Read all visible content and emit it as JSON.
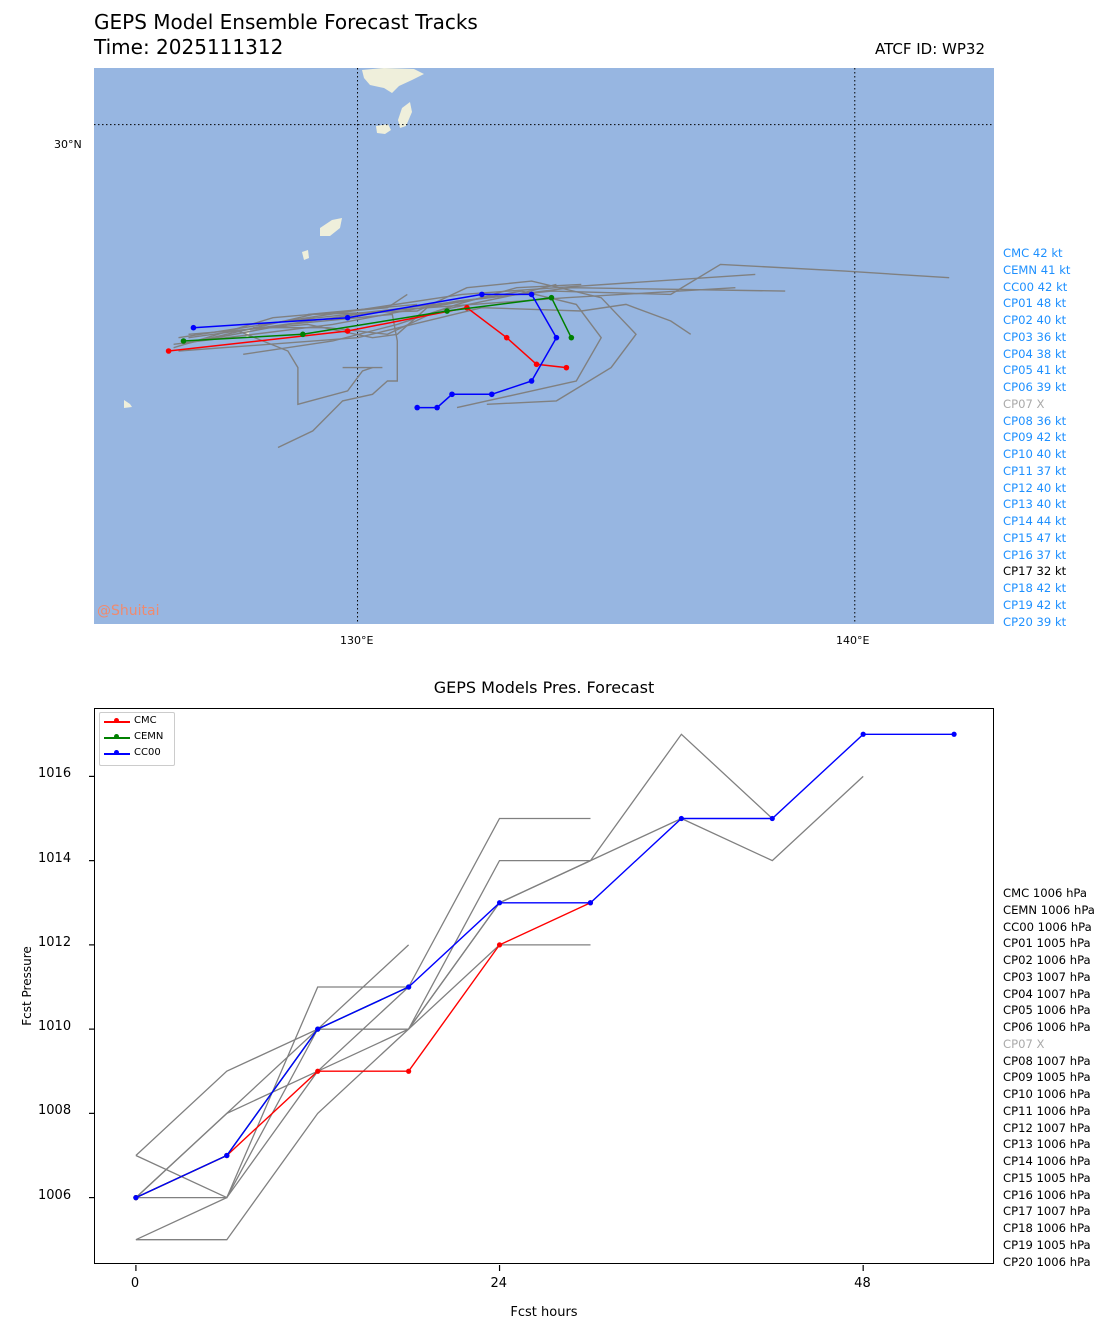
{
  "header": {
    "title": "GEPS Model Ensemble Forecast Tracks",
    "time": "Time: 2025111312",
    "atcf_id": "ATCF ID: WP32"
  },
  "map": {
    "watermark": "@Shuitai",
    "lat_labels": [
      "30°N"
    ],
    "lon_labels": [
      "130°E",
      "140°E"
    ],
    "ocean_color": "#97b6e1",
    "land_color": "#efefdb",
    "legend": [
      {
        "label": "CMC 42 kt",
        "color": "#1e90ff"
      },
      {
        "label": "CEMN 41 kt",
        "color": "#1e90ff"
      },
      {
        "label": "CC00 42 kt",
        "color": "#1e90ff"
      },
      {
        "label": "CP01 48 kt",
        "color": "#1e90ff"
      },
      {
        "label": "CP02 40 kt",
        "color": "#1e90ff"
      },
      {
        "label": "CP03 36 kt",
        "color": "#1e90ff"
      },
      {
        "label": "CP04 38 kt",
        "color": "#1e90ff"
      },
      {
        "label": "CP05 41 kt",
        "color": "#1e90ff"
      },
      {
        "label": "CP06 39 kt",
        "color": "#1e90ff"
      },
      {
        "label": "CP07 X",
        "color": "#aaaaaa"
      },
      {
        "label": "CP08 36 kt",
        "color": "#1e90ff"
      },
      {
        "label": "CP09 42 kt",
        "color": "#1e90ff"
      },
      {
        "label": "CP10 40 kt",
        "color": "#1e90ff"
      },
      {
        "label": "CP11 37 kt",
        "color": "#1e90ff"
      },
      {
        "label": "CP12 40 kt",
        "color": "#1e90ff"
      },
      {
        "label": "CP13 40 kt",
        "color": "#1e90ff"
      },
      {
        "label": "CP14 44 kt",
        "color": "#1e90ff"
      },
      {
        "label": "CP15 47 kt",
        "color": "#1e90ff"
      },
      {
        "label": "CP16 37 kt",
        "color": "#1e90ff"
      },
      {
        "label": "CP17 32 kt",
        "color": "#000000"
      },
      {
        "label": "CP18 42 kt",
        "color": "#1e90ff"
      },
      {
        "label": "CP19 42 kt",
        "color": "#1e90ff"
      },
      {
        "label": "CP20 39 kt",
        "color": "#1e90ff"
      }
    ]
  },
  "pressure": {
    "title": "GEPS Models Pres. Forecast",
    "legend": [
      {
        "label": "CMC 1006 hPa",
        "color": "#000000"
      },
      {
        "label": "CEMN 1006 hPa",
        "color": "#000000"
      },
      {
        "label": "CC00 1006 hPa",
        "color": "#000000"
      },
      {
        "label": "CP01 1005 hPa",
        "color": "#000000"
      },
      {
        "label": "CP02 1006 hPa",
        "color": "#000000"
      },
      {
        "label": "CP03 1007 hPa",
        "color": "#000000"
      },
      {
        "label": "CP04 1007 hPa",
        "color": "#000000"
      },
      {
        "label": "CP05 1006 hPa",
        "color": "#000000"
      },
      {
        "label": "CP06 1006 hPa",
        "color": "#000000"
      },
      {
        "label": "CP07 X",
        "color": "#aaaaaa"
      },
      {
        "label": "CP08 1007 hPa",
        "color": "#000000"
      },
      {
        "label": "CP09 1005 hPa",
        "color": "#000000"
      },
      {
        "label": "CP10 1006 hPa",
        "color": "#000000"
      },
      {
        "label": "CP11 1006 hPa",
        "color": "#000000"
      },
      {
        "label": "CP12 1007 hPa",
        "color": "#000000"
      },
      {
        "label": "CP13 1006 hPa",
        "color": "#000000"
      },
      {
        "label": "CP14 1006 hPa",
        "color": "#000000"
      },
      {
        "label": "CP15 1005 hPa",
        "color": "#000000"
      },
      {
        "label": "CP16 1006 hPa",
        "color": "#000000"
      },
      {
        "label": "CP17 1007 hPa",
        "color": "#000000"
      },
      {
        "label": "CP18 1006 hPa",
        "color": "#000000"
      },
      {
        "label": "CP19 1005 hPa",
        "color": "#000000"
      },
      {
        "label": "CP20 1006 hPa",
        "color": "#000000"
      }
    ]
  },
  "chart_data": [
    {
      "type": "line",
      "title": "GEPS Model Ensemble Forecast Tracks",
      "xlabel": "",
      "ylabel": "",
      "xlim": [
        124.7,
        142.8
      ],
      "ylim": [
        15.0,
        31.7
      ],
      "xticks": [
        130,
        140
      ],
      "xtick_labels": [
        "130°E",
        "140°E"
      ],
      "yticks": [
        30
      ],
      "ytick_labels": [
        "30°N"
      ],
      "grid": "dotted at 130°E, 140°E and 30°N",
      "series": [
        {
          "name": "CMC",
          "color": "#ff0000",
          "points": [
            [
              126.2,
              23.2
            ],
            [
              129.8,
              23.8
            ],
            [
              132.2,
              24.5
            ],
            [
              133.0,
              23.6
            ],
            [
              133.6,
              22.8
            ],
            [
              134.2,
              22.7
            ]
          ]
        },
        {
          "name": "CEMN",
          "color": "#008000",
          "points": [
            [
              126.5,
              23.5
            ],
            [
              128.9,
              23.7
            ],
            [
              131.8,
              24.4
            ],
            [
              133.9,
              24.8
            ],
            [
              134.3,
              23.6
            ]
          ]
        },
        {
          "name": "CC00",
          "color": "#0000ff",
          "points": [
            [
              126.7,
              23.9
            ],
            [
              129.8,
              24.2
            ],
            [
              132.5,
              24.9
            ],
            [
              133.5,
              24.9
            ],
            [
              134.0,
              23.6
            ],
            [
              133.5,
              22.3
            ],
            [
              132.7,
              21.9
            ],
            [
              131.9,
              21.9
            ],
            [
              131.6,
              21.5
            ],
            [
              131.2,
              21.5
            ]
          ]
        },
        {
          "color": "#808080",
          "points": [
            [
              126.3,
              23.4
            ],
            [
              129.5,
              24.0
            ],
            [
              132.0,
              24.7
            ],
            [
              133.9,
              25.0
            ],
            [
              136.3,
              24.9
            ],
            [
              137.3,
              25.8
            ],
            [
              139.8,
              25.6
            ],
            [
              141.9,
              25.4
            ]
          ]
        },
        {
          "color": "#808080",
          "points": [
            [
              126.4,
              23.6
            ],
            [
              129.0,
              24.2
            ],
            [
              132.1,
              24.9
            ],
            [
              134.0,
              25.1
            ],
            [
              138.0,
              25.5
            ]
          ]
        },
        {
          "color": "#808080",
          "points": [
            [
              126.6,
              23.6
            ],
            [
              130.5,
              24.4
            ],
            [
              134.2,
              24.8
            ],
            [
              137.6,
              25.1
            ]
          ]
        },
        {
          "color": "#808080",
          "points": [
            [
              126.4,
              23.2
            ],
            [
              130.0,
              23.6
            ],
            [
              132.5,
              24.5
            ],
            [
              134.5,
              24.4
            ],
            [
              135.4,
              24.6
            ],
            [
              136.3,
              24.1
            ],
            [
              136.7,
              23.7
            ]
          ]
        },
        {
          "color": "#808080",
          "points": [
            [
              128.0,
              24.0
            ],
            [
              131.0,
              24.5
            ],
            [
              134.3,
              25.1
            ],
            [
              138.6,
              25.0
            ]
          ]
        },
        {
          "color": "#808080",
          "points": [
            [
              127.9,
              23.9
            ],
            [
              129.4,
              23.9
            ],
            [
              130.6,
              23.7
            ],
            [
              131.6,
              24.4
            ],
            [
              133.2,
              24.9
            ],
            [
              134.0,
              25.2
            ]
          ]
        },
        {
          "color": "#808080",
          "points": [
            [
              127.7,
              23.1
            ],
            [
              129.5,
              23.5
            ],
            [
              130.8,
              24.0
            ],
            [
              132.0,
              24.6
            ],
            [
              133.2,
              25.1
            ],
            [
              134.5,
              25.2
            ]
          ]
        },
        {
          "color": "#808080",
          "points": [
            [
              126.6,
              23.7
            ],
            [
              129.0,
              24.0
            ],
            [
              130.3,
              23.6
            ],
            [
              130.8,
              23.7
            ],
            [
              131.4,
              24.5
            ],
            [
              133.3,
              25.0
            ],
            [
              134.4,
              24.6
            ],
            [
              134.9,
              23.6
            ],
            [
              134.4,
              22.3
            ],
            [
              133.2,
              21.9
            ],
            [
              132.0,
              21.5
            ]
          ]
        },
        {
          "color": "#808080",
          "points": [
            [
              126.5,
              23.4
            ],
            [
              129.1,
              24.3
            ],
            [
              131.2,
              24.4
            ],
            [
              132.2,
              25.1
            ],
            [
              133.5,
              25.3
            ],
            [
              134.9,
              24.8
            ],
            [
              135.6,
              23.7
            ],
            [
              135.1,
              22.7
            ],
            [
              134.0,
              21.7
            ],
            [
              132.6,
              21.6
            ]
          ]
        },
        {
          "color": "#808080",
          "points": [
            [
              127.6,
              23.8
            ],
            [
              128.6,
              23.2
            ],
            [
              128.8,
              22.7
            ],
            [
              128.8,
              21.6
            ],
            [
              129.8,
              22.0
            ],
            [
              130.1,
              22.6
            ],
            [
              130.3,
              22.7
            ]
          ]
        },
        {
          "color": "#808080",
          "points": [
            [
              126.3,
              23.3
            ],
            [
              128.3,
              24.2
            ],
            [
              130.6,
              24.5
            ],
            [
              131.0,
              24.9
            ]
          ]
        },
        {
          "color": "#808080",
          "points": [
            [
              129.7,
              22.7
            ],
            [
              130.5,
              22.7
            ]
          ]
        },
        {
          "color": "#808080",
          "points": [
            [
              126.8,
              23.5
            ],
            [
              128.6,
              24.0
            ],
            [
              130.7,
              24.3
            ],
            [
              130.8,
              23.5
            ],
            [
              130.8,
              22.3
            ],
            [
              130.6,
              22.3
            ],
            [
              130.3,
              21.9
            ],
            [
              129.7,
              21.7
            ],
            [
              129.1,
              20.8
            ],
            [
              128.4,
              20.3
            ]
          ]
        },
        {
          "color": "#808080",
          "points": [
            [
              129.0,
              24.3
            ],
            [
              131.2,
              24.6
            ]
          ]
        }
      ]
    },
    {
      "type": "line",
      "title": "GEPS Models Pres. Forecast",
      "xlabel": "Fcst hours",
      "ylabel": "Fcst Pressure",
      "xlim": [
        -2.7,
        56.7
      ],
      "ylim": [
        1004.4,
        1017.6
      ],
      "xticks": [
        0,
        24,
        48
      ],
      "yticks": [
        1006,
        1008,
        1010,
        1012,
        1014,
        1016
      ],
      "legend_position": "top-left",
      "series": [
        {
          "name": "CMC",
          "color": "#ff0000",
          "x": [
            0,
            6,
            12,
            18,
            24,
            30
          ],
          "values": [
            1006,
            1007,
            1009,
            1009,
            1012,
            1013
          ]
        },
        {
          "name": "CEMN",
          "color": "#008000",
          "x": [
            0,
            6,
            12,
            18
          ],
          "values": [
            1006,
            1007,
            1010,
            1011
          ]
        },
        {
          "name": "CC00",
          "color": "#0000ff",
          "x": [
            0,
            6,
            12,
            18,
            24,
            30,
            36,
            42,
            48,
            54
          ],
          "values": [
            1006,
            1007,
            1010,
            1011,
            1013,
            1013,
            1015,
            1015,
            1017,
            1017
          ]
        },
        {
          "color": "#808080",
          "x": [
            0,
            6,
            12,
            18,
            24,
            30,
            36,
            42,
            48
          ],
          "values": [
            1007,
            1009,
            1010,
            1010,
            1013,
            1014,
            1015,
            1014,
            1016
          ]
        },
        {
          "color": "#808080",
          "x": [
            0,
            6,
            12,
            18,
            24,
            30,
            36,
            42
          ],
          "values": [
            1006,
            1008,
            1010,
            1010,
            1014,
            1014,
            1017,
            1015
          ]
        },
        {
          "color": "#808080",
          "x": [
            0,
            6,
            12,
            18,
            24,
            30
          ],
          "values": [
            1005,
            1005,
            1008,
            1010,
            1012,
            1012
          ]
        },
        {
          "color": "#808080",
          "x": [
            0,
            6,
            12,
            18,
            24,
            30
          ],
          "values": [
            1007,
            1006,
            1009,
            1011,
            1015,
            1015
          ]
        },
        {
          "color": "#808080",
          "x": [
            0,
            6,
            12,
            18
          ],
          "values": [
            1006,
            1006,
            1011,
            1011
          ]
        },
        {
          "color": "#808080",
          "x": [
            0,
            6,
            12,
            18
          ],
          "values": [
            1005,
            1006,
            1010,
            1012
          ]
        },
        {
          "color": "#808080",
          "x": [
            0,
            6,
            12,
            18,
            24,
            30
          ],
          "values": [
            1006,
            1008,
            1009,
            1010,
            1013,
            1014
          ]
        }
      ]
    }
  ]
}
